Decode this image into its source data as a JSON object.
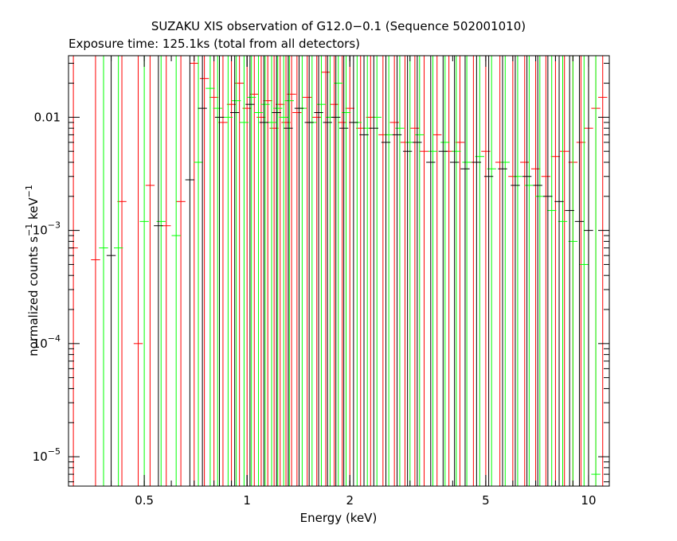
{
  "chart_data": {
    "type": "scatter",
    "title": "SUZAKU XIS observation of G12.0−0.1 (Sequence 502001010)",
    "subtitle": "Exposure time: 125.1ks (total from all detectors)",
    "xlabel": "Energy (keV)",
    "ylabel": {
      "base": "normalized counts s",
      "exp1": "−1",
      "mid": " keV",
      "exp2": "−1"
    },
    "x_scale": "log",
    "y_scale": "log",
    "xlim": [
      0.3,
      11.5
    ],
    "ylim": [
      5.5e-06,
      0.035
    ],
    "x_ticks": [
      {
        "value": 0.5,
        "label": "0.5"
      },
      {
        "value": 1,
        "label": "1"
      },
      {
        "value": 2,
        "label": "2"
      },
      {
        "value": 5,
        "label": "5"
      },
      {
        "value": 10,
        "label": "10"
      }
    ],
    "y_ticks": [
      {
        "value": 0.01,
        "label": "0.01",
        "exp": ""
      },
      {
        "value": 0.001,
        "label": "10",
        "exp": "−3"
      },
      {
        "value": 0.0001,
        "label": "10",
        "exp": "−4"
      },
      {
        "value": 1e-05,
        "label": "10",
        "exp": "−5"
      }
    ],
    "series": [
      {
        "color": "#ff0000",
        "points": [
          [
            0.31,
            0.0007
          ],
          [
            0.36,
            0.00055
          ],
          [
            0.43,
            0.0018
          ],
          [
            0.48,
            0.0001
          ],
          [
            0.52,
            0.0025
          ],
          [
            0.58,
            0.0011
          ],
          [
            0.64,
            0.0018
          ],
          [
            0.7,
            0.03
          ],
          [
            0.75,
            0.022
          ],
          [
            0.8,
            0.015
          ],
          [
            0.85,
            0.009
          ],
          [
            0.9,
            0.013
          ],
          [
            0.95,
            0.02
          ],
          [
            1.0,
            0.012
          ],
          [
            1.05,
            0.016
          ],
          [
            1.1,
            0.01
          ],
          [
            1.15,
            0.014
          ],
          [
            1.2,
            0.008
          ],
          [
            1.25,
            0.013
          ],
          [
            1.3,
            0.009
          ],
          [
            1.35,
            0.016
          ],
          [
            1.4,
            0.011
          ],
          [
            1.5,
            0.015
          ],
          [
            1.6,
            0.01
          ],
          [
            1.7,
            0.025
          ],
          [
            1.8,
            0.013
          ],
          [
            1.9,
            0.009
          ],
          [
            2.0,
            0.012
          ],
          [
            2.15,
            0.008
          ],
          [
            2.3,
            0.01
          ],
          [
            2.5,
            0.007
          ],
          [
            2.7,
            0.009
          ],
          [
            2.9,
            0.006
          ],
          [
            3.1,
            0.008
          ],
          [
            3.3,
            0.005
          ],
          [
            3.6,
            0.007
          ],
          [
            3.9,
            0.005
          ],
          [
            4.2,
            0.006
          ],
          [
            4.6,
            0.004
          ],
          [
            5.0,
            0.005
          ],
          [
            5.5,
            0.004
          ],
          [
            6.0,
            0.003
          ],
          [
            6.5,
            0.004
          ],
          [
            7.0,
            0.0035
          ],
          [
            7.5,
            0.003
          ],
          [
            8.0,
            0.0045
          ],
          [
            8.5,
            0.005
          ],
          [
            9.0,
            0.004
          ],
          [
            9.5,
            0.006
          ],
          [
            10.0,
            0.008
          ],
          [
            10.5,
            0.012
          ],
          [
            11.0,
            0.015
          ]
        ]
      },
      {
        "color": "#00ff00",
        "points": [
          [
            0.38,
            0.0007
          ],
          [
            0.42,
            0.0007
          ],
          [
            0.5,
            0.0012
          ],
          [
            0.56,
            0.0012
          ],
          [
            0.62,
            0.0009
          ],
          [
            0.72,
            0.004
          ],
          [
            0.78,
            0.018
          ],
          [
            0.82,
            0.012
          ],
          [
            0.88,
            0.01
          ],
          [
            0.93,
            0.014
          ],
          [
            0.98,
            0.009
          ],
          [
            1.03,
            0.015
          ],
          [
            1.08,
            0.011
          ],
          [
            1.13,
            0.013
          ],
          [
            1.18,
            0.009
          ],
          [
            1.23,
            0.012
          ],
          [
            1.28,
            0.01
          ],
          [
            1.33,
            0.014
          ],
          [
            1.45,
            0.012
          ],
          [
            1.55,
            0.009
          ],
          [
            1.65,
            0.013
          ],
          [
            1.75,
            0.01
          ],
          [
            1.85,
            0.02
          ],
          [
            1.95,
            0.011
          ],
          [
            2.1,
            0.009
          ],
          [
            2.25,
            0.008
          ],
          [
            2.4,
            0.01
          ],
          [
            2.6,
            0.007
          ],
          [
            2.8,
            0.008
          ],
          [
            3.0,
            0.006
          ],
          [
            3.2,
            0.007
          ],
          [
            3.5,
            0.005
          ],
          [
            3.8,
            0.006
          ],
          [
            4.1,
            0.005
          ],
          [
            4.4,
            0.004
          ],
          [
            4.8,
            0.0045
          ],
          [
            5.2,
            0.0035
          ],
          [
            5.7,
            0.004
          ],
          [
            6.2,
            0.003
          ],
          [
            6.7,
            0.0025
          ],
          [
            7.2,
            0.002
          ],
          [
            7.8,
            0.0015
          ],
          [
            8.4,
            0.0012
          ],
          [
            9.0,
            0.0008
          ],
          [
            9.7,
            0.0005
          ],
          [
            10.5,
            7e-06
          ]
        ]
      },
      {
        "color": "#000000",
        "points": [
          [
            0.4,
            0.0006
          ],
          [
            0.55,
            0.0011
          ],
          [
            0.68,
            0.0028
          ],
          [
            0.74,
            0.012
          ],
          [
            0.83,
            0.01
          ],
          [
            0.92,
            0.011
          ],
          [
            1.02,
            0.013
          ],
          [
            1.12,
            0.009
          ],
          [
            1.22,
            0.011
          ],
          [
            1.32,
            0.008
          ],
          [
            1.42,
            0.012
          ],
          [
            1.52,
            0.009
          ],
          [
            1.62,
            0.011
          ],
          [
            1.72,
            0.009
          ],
          [
            1.82,
            0.01
          ],
          [
            1.92,
            0.008
          ],
          [
            2.05,
            0.009
          ],
          [
            2.2,
            0.007
          ],
          [
            2.35,
            0.008
          ],
          [
            2.55,
            0.006
          ],
          [
            2.75,
            0.007
          ],
          [
            2.95,
            0.005
          ],
          [
            3.15,
            0.006
          ],
          [
            3.45,
            0.004
          ],
          [
            3.75,
            0.005
          ],
          [
            4.05,
            0.004
          ],
          [
            4.35,
            0.0035
          ],
          [
            4.7,
            0.004
          ],
          [
            5.1,
            0.003
          ],
          [
            5.6,
            0.0035
          ],
          [
            6.1,
            0.0025
          ],
          [
            6.6,
            0.003
          ],
          [
            7.1,
            0.0025
          ],
          [
            7.6,
            0.002
          ],
          [
            8.2,
            0.0018
          ],
          [
            8.8,
            0.0015
          ],
          [
            9.4,
            0.0012
          ],
          [
            10.0,
            0.001
          ]
        ]
      }
    ]
  }
}
